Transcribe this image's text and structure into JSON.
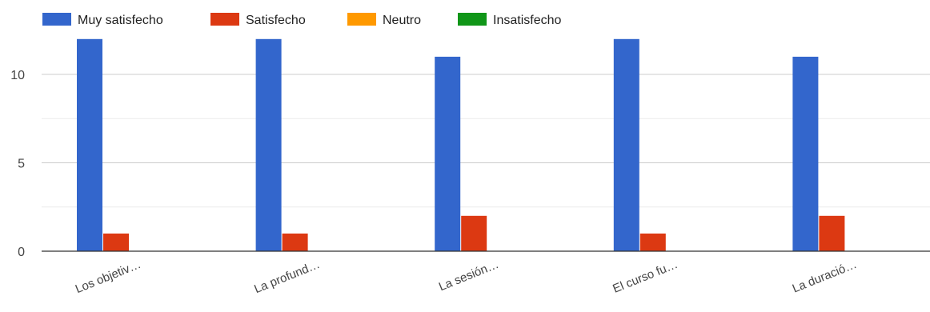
{
  "chart_data": {
    "type": "bar",
    "title": "",
    "xlabel": "",
    "ylabel": "",
    "categories": [
      "Los objetiv…",
      "La profund…",
      "La sesión…",
      "El curso fu…",
      "La duració…"
    ],
    "series": [
      {
        "name": "Muy satisfecho",
        "color": "#3366cc",
        "values": [
          12,
          12,
          11,
          12,
          11
        ]
      },
      {
        "name": "Satisfecho",
        "color": "#dc3912",
        "values": [
          1,
          1,
          2,
          1,
          2
        ]
      },
      {
        "name": "Neutro",
        "color": "#ff9900",
        "values": [
          0,
          0,
          0,
          0,
          0
        ]
      },
      {
        "name": "Insatisfecho",
        "color": "#109618",
        "values": [
          0,
          0,
          0,
          0,
          0
        ]
      }
    ],
    "yticks": [
      0,
      5,
      10
    ],
    "ylim": [
      0,
      12.3
    ],
    "gridlines": true,
    "legend_position": "top-left"
  }
}
